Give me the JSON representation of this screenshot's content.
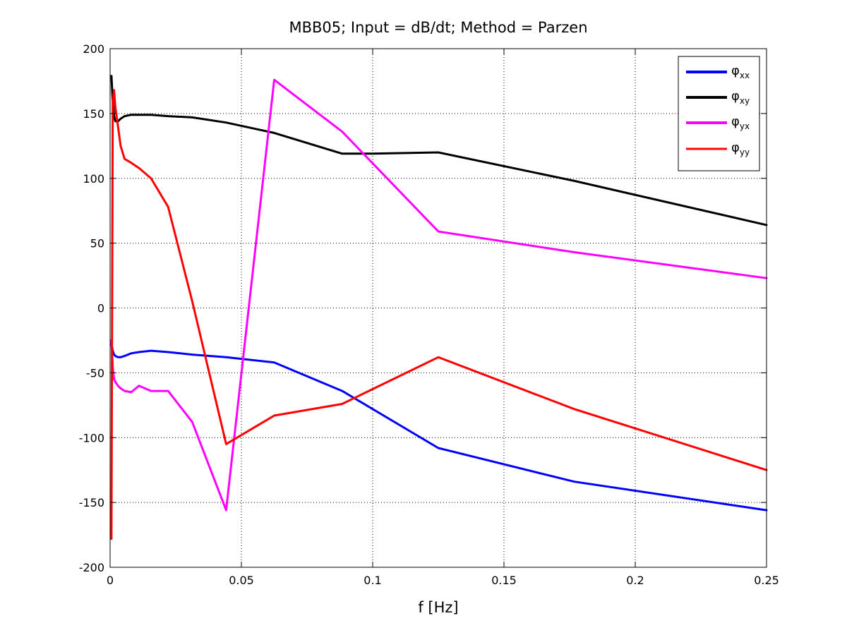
{
  "chart_data": {
    "type": "line",
    "title": "MBB05; Input = dB/dt; Method = Parzen",
    "xlabel": "f [Hz]",
    "ylabel": "",
    "xlim": [
      0,
      0.25
    ],
    "ylim": [
      -200,
      200
    ],
    "xticks": [
      0,
      0.05,
      0.1,
      0.15,
      0.2,
      0.25
    ],
    "xtick_labels": [
      "0",
      "0.05",
      "0.1",
      "0.15",
      "0.2",
      "0.25"
    ],
    "yticks": [
      200,
      150,
      100,
      50,
      0,
      -50,
      -100,
      -150,
      -200
    ],
    "ytick_labels": [
      "200",
      "150",
      "100",
      "50",
      "0",
      "-50",
      "-100",
      "-150",
      "-200"
    ],
    "grid": true,
    "legend_position": "top-right",
    "series": [
      {
        "name": "φxx",
        "legend_main": "φ",
        "legend_sub": "xx",
        "color": "#0000ff",
        "x": [
          0.0005,
          0.001,
          0.0015,
          0.002,
          0.003,
          0.004,
          0.0055,
          0.008,
          0.011,
          0.0156,
          0.0221,
          0.0313,
          0.0442,
          0.0625,
          0.0884,
          0.125,
          0.1768,
          0.25
        ],
        "y": [
          -28,
          -33,
          -36,
          -37,
          -38,
          -38,
          -37,
          -35,
          -34,
          -33,
          -34,
          -36,
          -38,
          -42,
          -64,
          -108,
          -134,
          -156
        ]
      },
      {
        "name": "φxy",
        "legend_main": "φ",
        "legend_sub": "xy",
        "color": "#000000",
        "x": [
          0.0005,
          0.001,
          0.0015,
          0.002,
          0.003,
          0.004,
          0.0055,
          0.008,
          0.011,
          0.0156,
          0.0221,
          0.0313,
          0.0442,
          0.0625,
          0.0884,
          0.1,
          0.125,
          0.1768,
          0.25
        ],
        "y": [
          179,
          160,
          148,
          144,
          144,
          146,
          148,
          149,
          149,
          149,
          148,
          147,
          143,
          135,
          119,
          119,
          120,
          98,
          64
        ]
      },
      {
        "name": "φyx",
        "legend_main": "φ",
        "legend_sub": "yx",
        "color": "#ff00ff",
        "x": [
          0.0005,
          0.001,
          0.0015,
          0.002,
          0.003,
          0.004,
          0.0055,
          0.008,
          0.011,
          0.0156,
          0.0221,
          0.0313,
          0.0442,
          0.0625,
          0.0884,
          0.125,
          0.1768,
          0.25
        ],
        "y": [
          -25,
          -45,
          -55,
          -57,
          -60,
          -62,
          -64,
          -65,
          -60,
          -64,
          -64,
          -88,
          -156,
          176,
          136,
          59,
          43,
          23
        ]
      },
      {
        "name": "φyy",
        "legend_main": "φ",
        "legend_sub": "yy",
        "color": "#ff0000",
        "x": [
          0.0005,
          0.001,
          0.0015,
          0.002,
          0.003,
          0.004,
          0.0055,
          0.008,
          0.011,
          0.0156,
          0.0221,
          0.0313,
          0.0442,
          0.0625,
          0.0884,
          0.125,
          0.1768,
          0.25
        ],
        "y": [
          -178,
          160,
          168,
          155,
          140,
          125,
          115,
          112,
          108,
          100,
          78,
          5,
          -105,
          -83,
          -74,
          -38,
          -78,
          -125
        ]
      }
    ]
  }
}
